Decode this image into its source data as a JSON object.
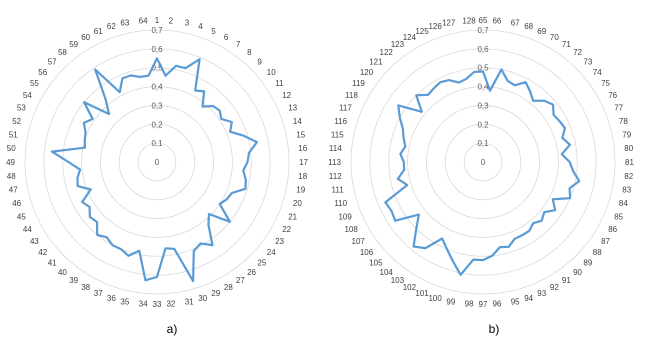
{
  "captions": [
    "a)",
    "b)"
  ],
  "chart_data": [
    {
      "type": "radar",
      "title": "",
      "caption": "a)",
      "categories": [
        "1",
        "2",
        "3",
        "4",
        "5",
        "6",
        "7",
        "8",
        "9",
        "10",
        "11",
        "12",
        "13",
        "14",
        "15",
        "16",
        "17",
        "18",
        "19",
        "20",
        "21",
        "22",
        "23",
        "24",
        "25",
        "26",
        "27",
        "28",
        "29",
        "30",
        "31",
        "32",
        "33",
        "34",
        "35",
        "36",
        "37",
        "38",
        "39",
        "40",
        "41",
        "42",
        "43",
        "44",
        "45",
        "46",
        "47",
        "48",
        "49",
        "50",
        "51",
        "52",
        "53",
        "54",
        "55",
        "56",
        "57",
        "58",
        "59",
        "60",
        "61",
        "62",
        "63",
        "64"
      ],
      "rlim": [
        0,
        0.7
      ],
      "r_ticks": [
        0,
        0.1,
        0.2,
        0.3,
        0.4,
        0.5,
        0.6,
        0.7
      ],
      "r_tick_labels": [
        "0",
        "0,1",
        "0,2",
        "0,3",
        "0,4",
        "0,5",
        "0,6",
        "0,7"
      ],
      "grid": true,
      "series_color": "#5B9BD5",
      "series": [
        {
          "values": [
            0.55,
            0.46,
            0.52,
            0.52,
            0.59,
            0.43,
            0.45,
            0.38,
            0.42,
            0.43,
            0.41,
            0.45,
            0.42,
            0.48,
            0.54,
            0.49,
            0.48,
            0.46,
            0.48,
            0.49,
            0.43,
            0.42,
            0.4,
            0.5,
            0.39,
            0.43,
            0.53,
            0.49,
            0.51,
            0.66,
            0.47,
            0.46,
            0.61,
            0.63,
            0.48,
            0.52,
            0.5,
            0.5,
            0.48,
            0.5,
            0.45,
            0.46,
            0.43,
            0.45,
            0.38,
            0.44,
            0.43,
            0.41,
            0.47,
            0.56,
            0.39,
            0.4,
            0.41,
            0.44,
            0.41,
            0.5,
            0.36,
            0.43,
            0.59,
            0.42,
            0.48,
            0.48,
            0.46,
            0.46
          ]
        }
      ]
    },
    {
      "type": "radar",
      "title": "",
      "caption": "b)",
      "categories": [
        "65",
        "66",
        "67",
        "68",
        "69",
        "70",
        "71",
        "72",
        "73",
        "74",
        "75",
        "76",
        "77",
        "78",
        "79",
        "80",
        "81",
        "82",
        "83",
        "84",
        "85",
        "86",
        "87",
        "88",
        "89",
        "90",
        "91",
        "92",
        "93",
        "94",
        "95",
        "96",
        "97",
        "98",
        "99",
        "100",
        "101",
        "102",
        "103",
        "104",
        "105",
        "106",
        "107",
        "108",
        "109",
        "110",
        "111",
        "112",
        "113",
        "114",
        "115",
        "116",
        "117",
        "118",
        "119",
        "120",
        "121",
        "122",
        "123",
        "124",
        "125",
        "126",
        "127",
        "128"
      ],
      "rlim": [
        0,
        0.7
      ],
      "r_ticks": [
        0,
        0.1,
        0.2,
        0.3,
        0.4,
        0.5,
        0.6,
        0.7
      ],
      "r_tick_labels": [
        "0",
        "0,1",
        "0,2",
        "0,3",
        "0,4",
        "0,5",
        "0,6",
        "0,7"
      ],
      "grid": true,
      "series_color": "#5B9BD5",
      "series": [
        {
          "values": [
            0.48,
            0.38,
            0.5,
            0.45,
            0.44,
            0.48,
            0.45,
            0.42,
            0.46,
            0.48,
            0.45,
            0.46,
            0.47,
            0.44,
            0.47,
            0.42,
            0.46,
            0.48,
            0.52,
            0.48,
            0.5,
            0.42,
            0.46,
            0.42,
            0.44,
            0.42,
            0.44,
            0.44,
            0.44,
            0.47,
            0.46,
            0.5,
            0.52,
            0.52,
            0.61,
            0.55,
            0.5,
            0.46,
            0.55,
            0.58,
            0.5,
            0.44,
            0.56,
            0.55,
            0.56,
            0.42,
            0.46,
            0.42,
            0.42,
            0.44,
            0.42,
            0.44,
            0.46,
            0.5,
            0.54,
            0.42,
            0.5,
            0.46,
            0.47,
            0.48,
            0.47,
            0.44,
            0.45,
            0.48
          ]
        }
      ]
    }
  ]
}
